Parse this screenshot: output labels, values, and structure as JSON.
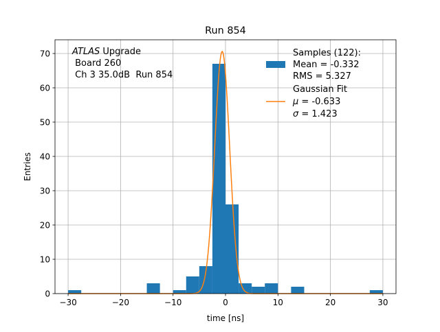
{
  "chart_data": {
    "type": "bar",
    "title": "Run 854",
    "xlabel": "time [ns]",
    "ylabel": "Entries",
    "xlim": [
      -32.5,
      32.5
    ],
    "ylim": [
      0,
      74
    ],
    "xticks": [
      -30,
      -20,
      -10,
      0,
      10,
      20,
      30
    ],
    "xtick_labels": [
      "−30",
      "−20",
      "−10",
      "0",
      "10",
      "20",
      "30"
    ],
    "yticks": [
      0,
      10,
      20,
      30,
      40,
      50,
      60,
      70
    ],
    "grid": true,
    "bar_color": "#1f77b4",
    "fit_color": "#ff7f0e",
    "annotation": {
      "line1_italic": "ATLAS",
      "line1_rest": " Upgrade",
      "line2": " Board 260",
      "line3": " Ch 3 35.0dB  Run 854"
    },
    "legend_location": "upper right",
    "legend": {
      "samples": [
        "Samples (122):",
        "Mean = -0.332",
        "RMS = 5.327"
      ],
      "fit": {
        "line1": "Gaussian Fit",
        "mu_symbol": "μ",
        "mu_rest": " = -0.633",
        "sigma_symbol": "σ",
        "sigma_rest": " = 1.423"
      }
    },
    "series": [
      {
        "name": "Samples (122)",
        "bin_edges": [
          -30,
          -27.5,
          -25,
          -22.5,
          -20,
          -17.5,
          -15,
          -12.5,
          -10,
          -7.5,
          -5,
          -2.5,
          0,
          2.5,
          5,
          7.5,
          10,
          12.5,
          15,
          17.5,
          20,
          22.5,
          25,
          27.5,
          30
        ],
        "values": [
          1,
          0,
          0,
          0,
          0,
          0,
          3,
          0,
          1,
          5,
          8,
          67,
          26,
          3,
          2,
          3,
          0,
          2,
          0,
          0,
          0,
          0,
          0,
          1
        ]
      },
      {
        "name": "Gaussian Fit",
        "amplitude": 70.6,
        "mu": -0.633,
        "sigma": 1.423,
        "x_range": [
          -30,
          30
        ]
      }
    ]
  }
}
